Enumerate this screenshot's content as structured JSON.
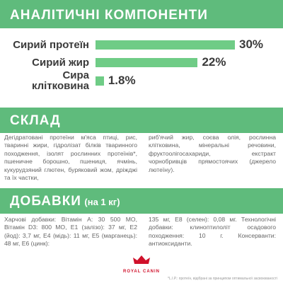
{
  "analysis": {
    "title": "АНАЛІТИЧНІ КОМПОНЕНТИ",
    "items": [
      {
        "label": "Сирий протеїн",
        "value": 30,
        "value_label": "30%"
      },
      {
        "label": "Сирий жир",
        "value": 22,
        "value_label": "22%"
      },
      {
        "label": "Сира клітковина",
        "value": 1.8,
        "value_label": "1.8%"
      }
    ]
  },
  "composition": {
    "title": "СКЛАД",
    "columns": [
      "Дегідратовані протеїни м'яса птиці, рис, тваринні жири, гідролізат білків тваринного походження, ізолят рослинних протеїнів*, пшеничне борошно, пшениця, ячмінь, кукурудзяний глютен, буряковий жом, дріжджі та їх частки,",
      "риб'ячий жир, соєва олія, рослинна клітковина, мінеральні речовини, фруктоолігосахариди, екстракт чорнобривців прямостоячих (джерело лютеїну)."
    ]
  },
  "additives": {
    "title": "ДОБАВКИ",
    "subtitle": "(на 1 кг)",
    "columns": [
      "Харчові добавки: Вітамін A: 30 500 MO, Вітамін D3: 800 MO, E1 (залізо): 37 мг, E2 (йод): 3,7 мг, E4 (мідь): 11 мг, E5 (марганець): 48 мг, E6 (цинк):",
      "135 мг, E8 (селен): 0,08 мг. Технологічні добавки: клиноптилоліт осадового походження: 10 г. Консерванти: антиоксиданти."
    ]
  },
  "logo": "ROYAL CANIN",
  "footnote": "*L.I.P.: протеїн, відібрані за принципом оптимальної засвоюваності"
}
